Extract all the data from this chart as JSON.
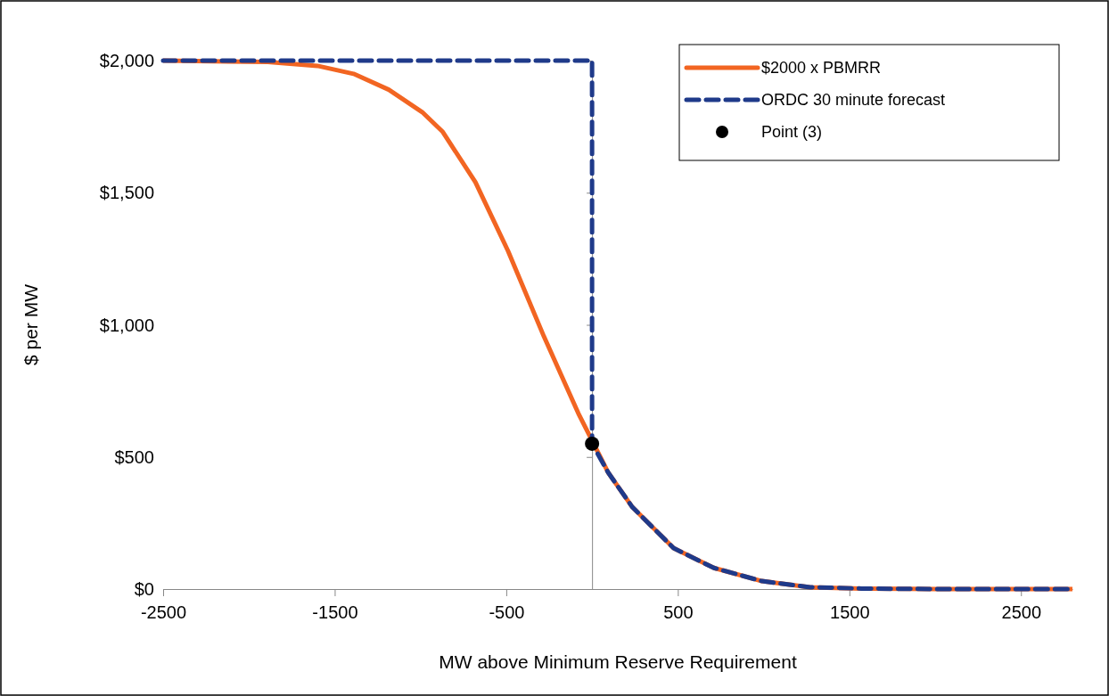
{
  "chart_data": {
    "type": "line",
    "xlabel": "MW above Minimum Reserve Requirement",
    "ylabel": "$ per MW",
    "xlim": [
      -2500,
      2800
    ],
    "xticks": [
      -2500,
      -1500,
      -500,
      500,
      1500,
      2500
    ],
    "ylim": [
      0,
      2000
    ],
    "yticks": [
      {
        "value": 0,
        "label": "$0"
      },
      {
        "value": 500,
        "label": "$500"
      },
      {
        "value": 1000,
        "label": "$1,000"
      },
      {
        "value": 1500,
        "label": "$1,500"
      },
      {
        "value": 2000,
        "label": "$2,000"
      }
    ],
    "grid": false,
    "legend": "top right",
    "series": [
      {
        "name": "$2000 x PBMRR",
        "color": "#f26522",
        "line_style": "solid",
        "marker": "none",
        "x": [
          -2500,
          -1890,
          -1600,
          -1390,
          -1185,
          -990,
          -870,
          -680,
          -490,
          -280,
          -80,
          95,
          235,
          475,
          710,
          990,
          1270,
          1570,
          2000,
          2800
        ],
        "values": [
          2000,
          1995,
          1980,
          1950,
          1890,
          1805,
          1730,
          1540,
          1280,
          955,
          665,
          440,
          310,
          155,
          80,
          30,
          7,
          2,
          0,
          0
        ]
      },
      {
        "name": "ORDC 30 minute forecast",
        "color": "#1f3a8a",
        "line_style": "dashed",
        "marker": "none",
        "x": [
          -2500,
          0,
          0,
          95,
          235,
          475,
          710,
          990,
          1270,
          1570,
          2000,
          2800
        ],
        "values": [
          2000,
          2000,
          550,
          440,
          310,
          155,
          80,
          30,
          7,
          2,
          0,
          0
        ]
      },
      {
        "name": "Point (3)",
        "type": "scatter",
        "color": "#000000",
        "marker": "circle",
        "x": [
          0
        ],
        "values": [
          550
        ]
      }
    ]
  }
}
